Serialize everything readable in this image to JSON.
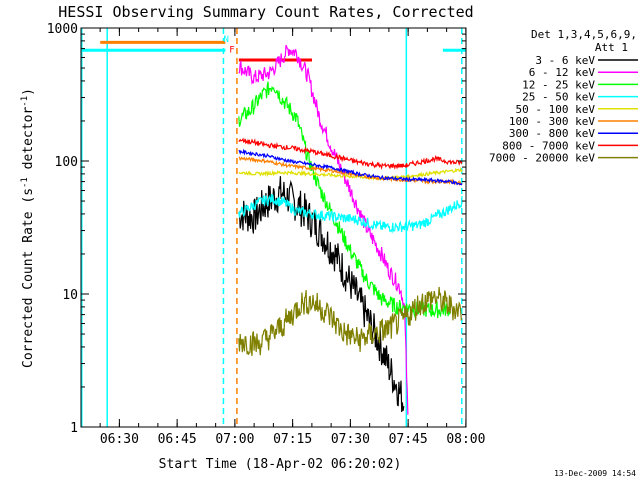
{
  "chart_data": {
    "type": "line",
    "title": "HESSI Observing Summary Count Rates, Corrected",
    "xlabel": "Start Time (18-Apr-02 06:20:02)",
    "ylabel": "Corrected Count Rate (s",
    "ylabel_sup1": "-1",
    "ylabel_mid": " detector",
    "ylabel_sup2": "-1",
    "ylabel_end": ")",
    "footer": "13-Dec-2009 14:54",
    "y_scale": "log",
    "ylim": [
      1,
      1000
    ],
    "xlim": [
      "06:20:02",
      "08:00:00"
    ],
    "x_ticks": [
      "06:30",
      "06:45",
      "07:00",
      "07:15",
      "07:30",
      "07:45",
      "08:00"
    ],
    "y_ticks": [
      "1",
      "10",
      "100",
      "1000"
    ],
    "legend": {
      "placement": "outside-right",
      "title_line1": "Det 1,3,4,5,6,9,",
      "title_line2": "Att 1"
    },
    "flag_labels": [
      {
        "text": "N",
        "color": "#00ffff",
        "t": 37.0,
        "y": 840
      },
      {
        "text": "F",
        "color": "#ff0000",
        "t": 38.5,
        "y": 700
      }
    ],
    "flag_bars": [
      {
        "color": "#ff8000",
        "t_start": 5,
        "t_end": 37.5,
        "y": 780
      },
      {
        "color": "#00ffff",
        "t_start": 0,
        "t_end": 37.5,
        "y": 680
      },
      {
        "color": "#ff0000",
        "t_start": 41,
        "t_end": 60,
        "y": 575
      },
      {
        "color": "#00ffff",
        "t_start": 94,
        "t_end": 100,
        "y": 680
      }
    ],
    "vlines": [
      {
        "t": 0.2,
        "color": "#00ffff",
        "dash": false
      },
      {
        "t": 6.8,
        "color": "#00ffff",
        "dash": false
      },
      {
        "t": 37.0,
        "color": "#00ffff",
        "dash": true
      },
      {
        "t": 40.5,
        "color": "#ff8000",
        "dash": true
      },
      {
        "t": 84.5,
        "color": "#00ffff",
        "dash": false
      },
      {
        "t": 98.9,
        "color": "#00ffff",
        "dash": true
      }
    ],
    "series": [
      {
        "name": "3 - 6 keV",
        "color": "#000000",
        "noise": 0.14,
        "points": [
          [
            41,
            40
          ],
          [
            45,
            38
          ],
          [
            48,
            48
          ],
          [
            52,
            58
          ],
          [
            55,
            50
          ],
          [
            58,
            42
          ],
          [
            62,
            30
          ],
          [
            66,
            20
          ],
          [
            70,
            12
          ],
          [
            74,
            7
          ],
          [
            78,
            4
          ],
          [
            80,
            2.8
          ],
          [
            84,
            1.5
          ]
        ]
      },
      {
        "name": "6 - 12 keV",
        "color": "#ff00ff",
        "noise": 0.06,
        "points": [
          [
            41,
            520
          ],
          [
            45,
            420
          ],
          [
            49,
            460
          ],
          [
            52,
            580
          ],
          [
            54,
            700
          ],
          [
            56,
            650
          ],
          [
            59,
            430
          ],
          [
            62,
            210
          ],
          [
            66,
            110
          ],
          [
            70,
            60
          ],
          [
            74,
            32
          ],
          [
            78,
            20
          ],
          [
            80,
            15
          ],
          [
            83,
            11
          ],
          [
            84,
            8
          ],
          [
            85,
            1
          ]
        ]
      },
      {
        "name": "12 - 25 keV",
        "color": "#00ff00",
        "noise": 0.06,
        "points": [
          [
            41,
            205
          ],
          [
            44,
            240
          ],
          [
            47,
            310
          ],
          [
            50,
            380
          ],
          [
            52,
            300
          ],
          [
            56,
            210
          ],
          [
            59,
            105
          ],
          [
            62,
            62
          ],
          [
            66,
            36
          ],
          [
            70,
            21
          ],
          [
            74,
            13
          ],
          [
            78,
            9.2
          ],
          [
            82,
            8
          ],
          [
            86,
            7.8
          ],
          [
            92,
            7.5
          ],
          [
            96,
            7.8
          ]
        ]
      },
      {
        "name": "25 - 50 keV",
        "color": "#00ffff",
        "noise": 0.04,
        "points": [
          [
            41,
            40
          ],
          [
            44,
            45
          ],
          [
            47,
            50
          ],
          [
            50,
            52
          ],
          [
            53,
            48
          ],
          [
            56,
            42
          ],
          [
            60,
            40
          ],
          [
            66,
            38
          ],
          [
            72,
            36
          ],
          [
            78,
            32
          ],
          [
            84,
            32
          ],
          [
            88,
            33
          ],
          [
            92,
            38
          ],
          [
            96,
            44
          ],
          [
            99,
            50
          ]
        ]
      },
      {
        "name": "50 - 100 keV",
        "color": "#e0e000",
        "noise": 0.012,
        "points": [
          [
            41,
            82
          ],
          [
            46,
            80
          ],
          [
            52,
            82
          ],
          [
            56,
            81
          ],
          [
            60,
            80
          ],
          [
            66,
            78
          ],
          [
            72,
            76
          ],
          [
            78,
            74
          ],
          [
            84,
            76
          ],
          [
            90,
            80
          ],
          [
            96,
            84
          ],
          [
            99,
            86
          ]
        ]
      },
      {
        "name": "100 - 300 keV",
        "color": "#ff8000",
        "noise": 0.012,
        "points": [
          [
            41,
            105
          ],
          [
            48,
            100
          ],
          [
            54,
            92
          ],
          [
            60,
            88
          ],
          [
            66,
            84
          ],
          [
            72,
            78
          ],
          [
            78,
            74
          ],
          [
            84,
            72
          ],
          [
            90,
            70
          ],
          [
            96,
            70
          ],
          [
            99,
            68
          ]
        ]
      },
      {
        "name": "300 - 800 keV",
        "color": "#0000ff",
        "noise": 0.012,
        "points": [
          [
            41,
            118
          ],
          [
            48,
            110
          ],
          [
            54,
            100
          ],
          [
            60,
            94
          ],
          [
            66,
            88
          ],
          [
            72,
            80
          ],
          [
            78,
            75
          ],
          [
            84,
            73
          ],
          [
            90,
            72
          ],
          [
            96,
            70
          ],
          [
            99,
            66
          ]
        ]
      },
      {
        "name": "800 - 7000 keV",
        "color": "#ff0000",
        "noise": 0.018,
        "points": [
          [
            41,
            145
          ],
          [
            48,
            132
          ],
          [
            54,
            126
          ],
          [
            60,
            118
          ],
          [
            66,
            108
          ],
          [
            72,
            98
          ],
          [
            78,
            92
          ],
          [
            84,
            92
          ],
          [
            88,
            98
          ],
          [
            92,
            104
          ],
          [
            96,
            98
          ],
          [
            99,
            97
          ]
        ]
      },
      {
        "name": "7000 - 20000 keV",
        "color": "#808000",
        "noise": 0.1,
        "points": [
          [
            41,
            4.5
          ],
          [
            46,
            4.2
          ],
          [
            50,
            5
          ],
          [
            54,
            6.5
          ],
          [
            57,
            8.5
          ],
          [
            60,
            8.8
          ],
          [
            64,
            7.2
          ],
          [
            68,
            5.2
          ],
          [
            72,
            4.5
          ],
          [
            76,
            5
          ],
          [
            80,
            5.5
          ],
          [
            84,
            6.5
          ],
          [
            88,
            8.5
          ],
          [
            92,
            9.5
          ],
          [
            96,
            8
          ],
          [
            99,
            7.5
          ]
        ]
      }
    ]
  }
}
